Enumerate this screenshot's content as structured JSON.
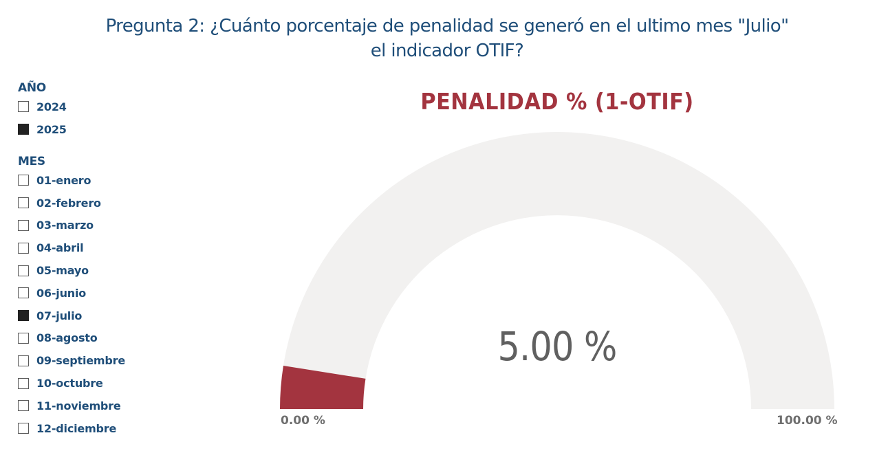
{
  "question": "Pregunta 2: ¿Cuánto porcentaje de penalidad se generó en el ultimo mes \"Julio\" el indicador OTIF?",
  "slicer_year": {
    "title": "AÑO",
    "items": [
      {
        "label": "2024",
        "checked": false
      },
      {
        "label": "2025",
        "checked": true
      }
    ]
  },
  "slicer_month": {
    "title": "MES",
    "items": [
      {
        "label": "01-enero",
        "checked": false
      },
      {
        "label": "02-febrero",
        "checked": false
      },
      {
        "label": "03-marzo",
        "checked": false
      },
      {
        "label": "04-abril",
        "checked": false
      },
      {
        "label": "05-mayo",
        "checked": false
      },
      {
        "label": "06-junio",
        "checked": false
      },
      {
        "label": "07-julio",
        "checked": true
      },
      {
        "label": "08-agosto",
        "checked": false
      },
      {
        "label": "09-septiembre",
        "checked": false
      },
      {
        "label": "10-octubre",
        "checked": false
      },
      {
        "label": "11-noviembre",
        "checked": false
      },
      {
        "label": "12-diciembre",
        "checked": false
      }
    ]
  },
  "gauge": {
    "title": "PENALIDAD % (1-OTIF)",
    "value": 5.0,
    "min": 0,
    "max": 100,
    "value_label": "5.00 %",
    "min_label": "0.00 %",
    "max_label": "100.00 %",
    "fill_color": "#a3343f",
    "track_color": "#f2f1f0"
  }
}
